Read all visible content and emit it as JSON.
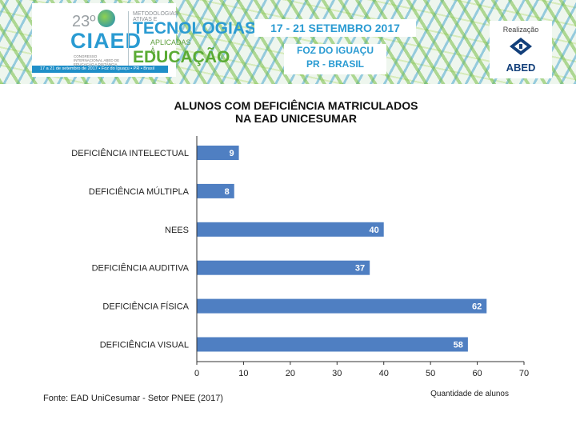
{
  "header": {
    "logo": {
      "edition": "23º",
      "name": "CIAED",
      "subtitle": "CONGRESSO INTERNACIONAL ABED DE EDUCAÇÃO A DISTÂNCIA",
      "strip": "17 a 21 de setembro de 2017 • Foz do Iguaçu • PR • Brasil"
    },
    "tagline": {
      "line1": "METODOLOGIAS ATIVAS E",
      "line2": "TECNOLOGIAS",
      "line3": "APLICADAS À",
      "line4": "EDUCAÇÃO"
    },
    "dates": "17 - 21 SETEMBRO 2017",
    "place_line1": "FOZ DO IGUAÇU",
    "place_line2": "PR - BRASIL",
    "sponsor_label": "Realização",
    "sponsor_name": "ABED",
    "colors": {
      "blue": "#2a9bd2",
      "green": "#5aab34",
      "navy": "#123f7a"
    }
  },
  "chart_data": {
    "type": "bar",
    "orientation": "horizontal",
    "title_line1": "ALUNOS COM DEFICIÊNCIA MATRICULADOS",
    "title_line2": "NA EAD UNICESUMAR",
    "categories": [
      "DEFICIÊNCIA INTELECTUAL",
      "DEFICIÊNCIA MÚLTIPLA",
      "NEES",
      "DEFICIÊNCIA AUDITIVA",
      "DEFICIÊNCIA FÍSICA",
      "DEFICIÊNCIA VISUAL"
    ],
    "values": [
      9,
      8,
      40,
      37,
      62,
      58
    ],
    "xlim": [
      0,
      70
    ],
    "xticks": [
      0,
      10,
      20,
      30,
      40,
      50,
      60,
      70
    ],
    "xlabel": "Quantidade de alunos",
    "ylabel": "",
    "bar_color": "#4f7fc2",
    "grid": false,
    "data_labels": "inside-end"
  },
  "footer": {
    "source": "Fonte: EAD UniCesumar - Setor PNEE (2017)"
  }
}
